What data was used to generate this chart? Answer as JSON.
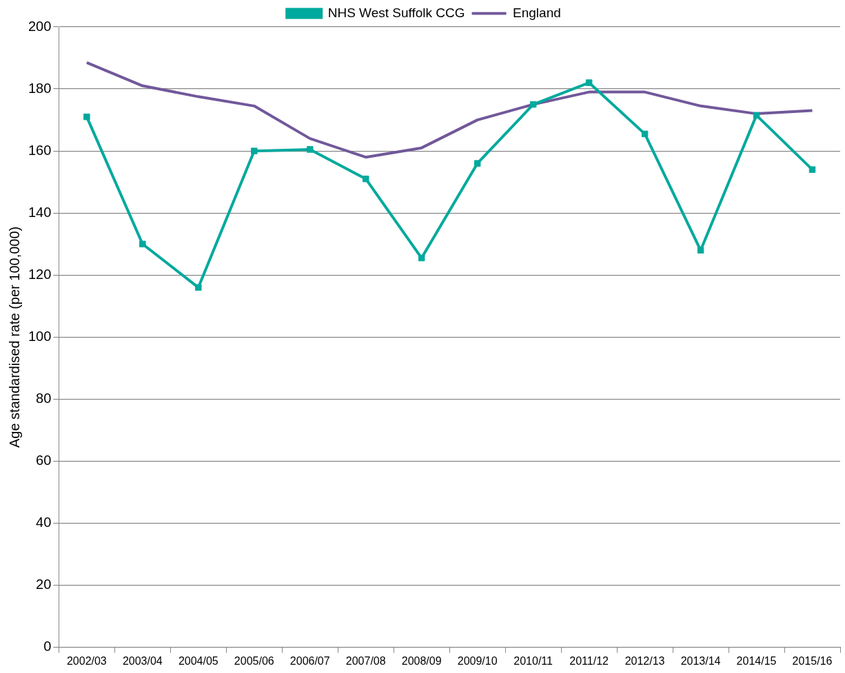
{
  "chart_data": {
    "type": "line",
    "ylabel": "Age standardised rate (per 100,000)",
    "categories": [
      "2002/03",
      "2003/04",
      "2004/05",
      "2005/06",
      "2006/07",
      "2007/08",
      "2008/09",
      "2009/10",
      "2010/11",
      "2011/12",
      "2012/13",
      "2013/14",
      "2014/15",
      "2015/16"
    ],
    "series": [
      {
        "name": "NHS West Suffolk CCG",
        "color": "#00a99d",
        "marker": "square",
        "values": [
          171,
          130,
          116,
          160,
          160.5,
          151,
          125.5,
          156,
          175,
          182,
          165.5,
          128,
          171.5,
          154
        ]
      },
      {
        "name": "England",
        "color": "#71589a",
        "marker": "none",
        "values": [
          188.5,
          181,
          177.5,
          174.5,
          164,
          158,
          161,
          170,
          175,
          179,
          179,
          174.5,
          172,
          173
        ]
      }
    ],
    "ylim": [
      0,
      200
    ],
    "yticks": [
      0,
      20,
      40,
      60,
      80,
      100,
      120,
      140,
      160,
      180,
      200
    ],
    "grid": "y",
    "legend": "top",
    "line_style": "solid"
  }
}
